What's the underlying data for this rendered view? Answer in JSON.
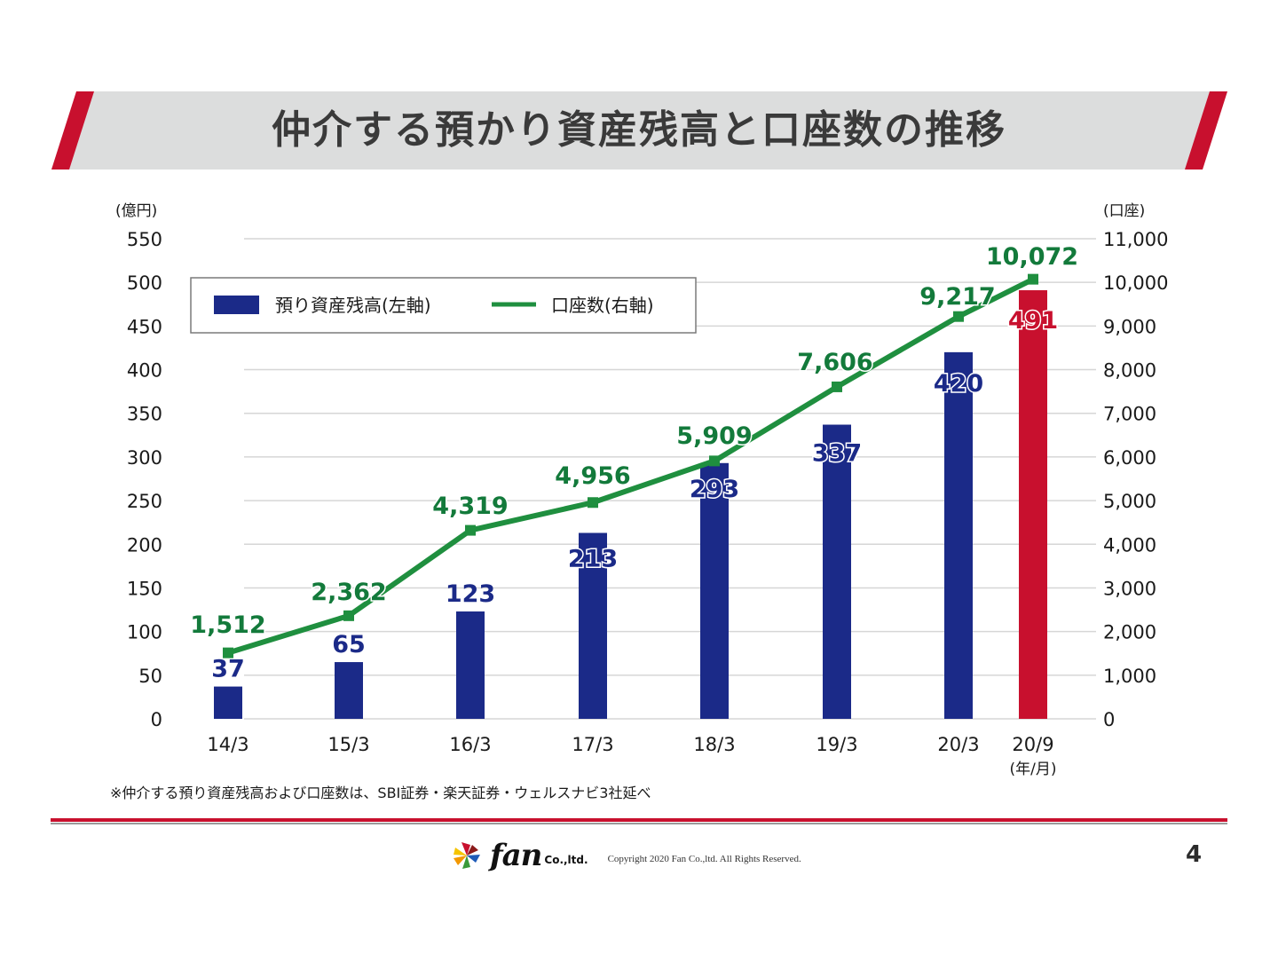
{
  "header": {
    "title": "仲介する預かり資産残高と口座数の推移"
  },
  "colors": {
    "bar": "#1b2a88",
    "bar_highlight": "#c8102e",
    "line": "#1f8f3f",
    "line_label": "#137a3b",
    "accent_red": "#c8102e",
    "banner_bg": "#dcdddd"
  },
  "chart_data": {
    "type": "bar",
    "title": "仲介する預かり資産残高と口座数の推移",
    "categories": [
      "14/3",
      "15/3",
      "16/3",
      "17/3",
      "18/3",
      "19/3",
      "20/3",
      "20/9"
    ],
    "xlabel": "(年/月)",
    "series": [
      {
        "name": "預り資産残高(左軸)",
        "type": "bar",
        "axis": "left",
        "values": [
          37,
          65,
          123,
          213,
          293,
          337,
          420,
          491
        ],
        "labels": [
          "37",
          "65",
          "123",
          "213",
          "293",
          "337",
          "420",
          "491"
        ],
        "highlight_index": 7
      },
      {
        "name": "口座数(右軸)",
        "type": "line",
        "axis": "right",
        "values": [
          1512,
          2362,
          4319,
          4956,
          5909,
          7606,
          9217,
          10072
        ],
        "labels": [
          "1,512",
          "2,362",
          "4,319",
          "4,956",
          "5,909",
          "7,606",
          "9,217",
          "10,072"
        ]
      }
    ],
    "y_left": {
      "label": "(億円)",
      "ylim": [
        0,
        550
      ],
      "ticks": [
        0,
        50,
        100,
        150,
        200,
        250,
        300,
        350,
        400,
        450,
        500,
        550
      ],
      "tick_labels": [
        "0",
        "50",
        "100",
        "150",
        "200",
        "250",
        "300",
        "350",
        "400",
        "450",
        "500",
        "550"
      ]
    },
    "y_right": {
      "label": "(口座)",
      "ylim": [
        0,
        11000
      ],
      "ticks": [
        0,
        1000,
        2000,
        3000,
        4000,
        5000,
        6000,
        7000,
        8000,
        9000,
        10000,
        11000
      ],
      "tick_labels": [
        "0",
        "1,000",
        "2,000",
        "3,000",
        "4,000",
        "5,000",
        "6,000",
        "7,000",
        "8,000",
        "9,000",
        "10,000",
        "11,000"
      ]
    },
    "grid": true,
    "legend": {
      "position": "top-left",
      "entries": [
        "預り資産残高(左軸)",
        "口座数(右軸)"
      ]
    }
  },
  "footnote": "※仲介する預り資産残高および口座数は、SBI証券・楽天証券・ウェルスナビ3社延べ",
  "footer": {
    "logo_text": "fan",
    "logo_suffix": "Co.,ltd.",
    "copyright": "Copyright 2020 Fan Co.,ltd. All Rights Reserved.",
    "page_number": "4"
  }
}
